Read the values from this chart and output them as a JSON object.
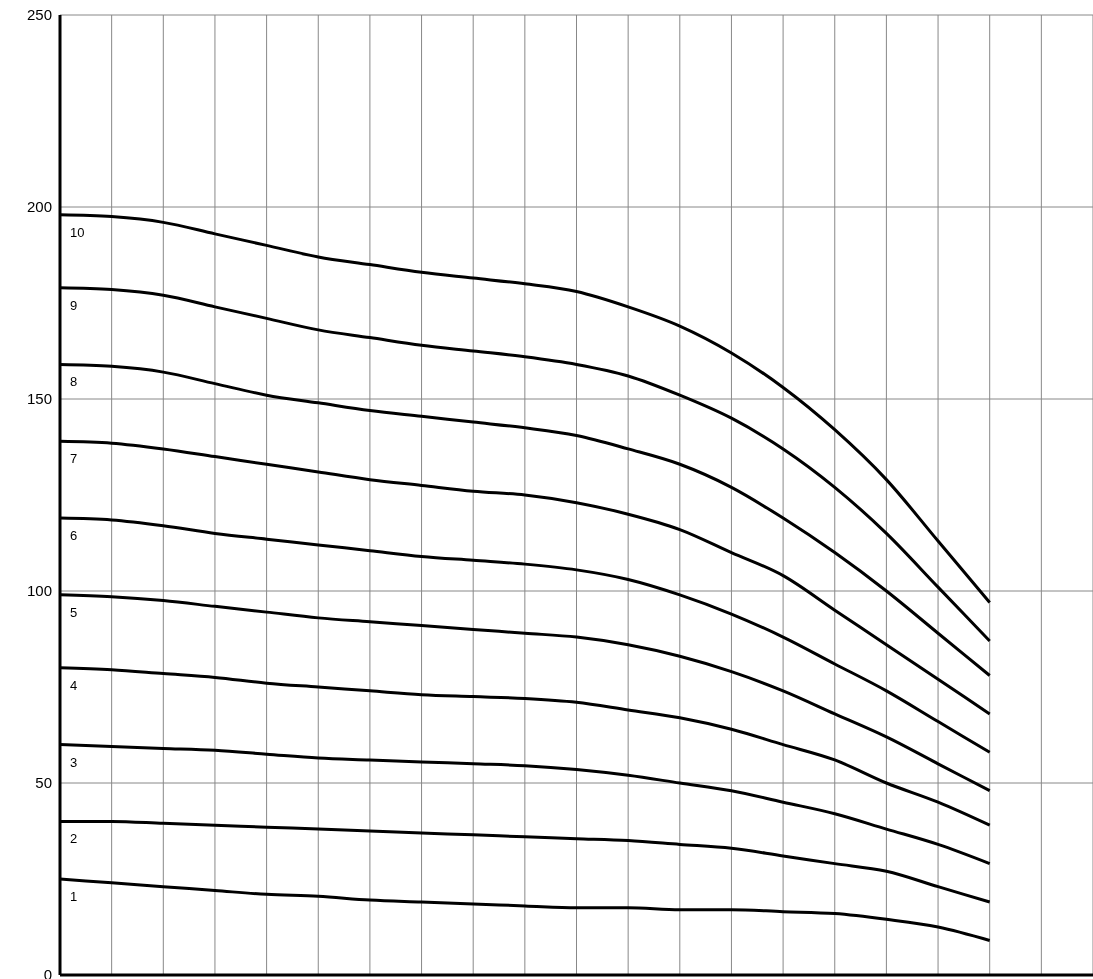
{
  "chart_data": {
    "type": "line",
    "categories": [
      null,
      null,
      null,
      null,
      null,
      null,
      null,
      null,
      null,
      null,
      null,
      null,
      null,
      null,
      null,
      null,
      null,
      null,
      null,
      null,
      null
    ],
    "series": [
      {
        "name": "1",
        "color": "#000000",
        "values": [
          25,
          24,
          23,
          22,
          21,
          20.5,
          19.5,
          19,
          18.5,
          18,
          17.5,
          17.5,
          17,
          17,
          16.5,
          16,
          14.5,
          12.5,
          9,
          null,
          null
        ]
      },
      {
        "name": "2",
        "color": "#000000",
        "values": [
          40,
          40,
          39.5,
          39,
          38.5,
          38,
          37.5,
          37,
          36.5,
          36,
          35.5,
          35,
          34,
          33,
          31,
          29,
          27,
          23,
          19,
          null,
          null
        ]
      },
      {
        "name": "3",
        "color": "#000000",
        "values": [
          60,
          59.5,
          59,
          58.5,
          57.5,
          56.5,
          56,
          55.5,
          55,
          54.5,
          53.5,
          52,
          50,
          48,
          45,
          42,
          38,
          34,
          29,
          null,
          null
        ]
      },
      {
        "name": "4",
        "color": "#000000",
        "values": [
          80,
          79.5,
          78.5,
          77.5,
          76,
          75,
          74,
          73,
          72.5,
          72,
          71,
          69,
          67,
          64,
          60,
          56,
          50,
          45,
          39,
          null,
          null
        ]
      },
      {
        "name": "5",
        "color": "#000000",
        "values": [
          99,
          98.5,
          97.5,
          96,
          94.5,
          93,
          92,
          91,
          90,
          89,
          88,
          86,
          83,
          79,
          74,
          68,
          62,
          55,
          48,
          null,
          null
        ]
      },
      {
        "name": "6",
        "color": "#000000",
        "values": [
          119,
          118.5,
          117,
          115,
          113.5,
          112,
          110.5,
          109,
          108,
          107,
          105.5,
          103,
          99,
          94,
          88,
          81,
          74,
          66,
          58,
          null,
          null
        ]
      },
      {
        "name": "7",
        "color": "#000000",
        "values": [
          139,
          138.5,
          137,
          135,
          133,
          131,
          129,
          127.5,
          126,
          125,
          123,
          120,
          116,
          110,
          104,
          95,
          86,
          77,
          68,
          null,
          null
        ]
      },
      {
        "name": "8",
        "color": "#000000",
        "values": [
          159,
          158.5,
          157,
          154,
          151,
          149,
          147,
          145.5,
          144,
          142.5,
          140.5,
          137,
          133,
          127,
          119,
          110,
          100,
          89,
          78,
          null,
          null
        ]
      },
      {
        "name": "9",
        "color": "#000000",
        "values": [
          179,
          178.5,
          177,
          174,
          171,
          168,
          166,
          164,
          162.5,
          161,
          159,
          156,
          151,
          145,
          137,
          127,
          115,
          101,
          87,
          null,
          null
        ]
      },
      {
        "name": "10",
        "color": "#000000",
        "values": [
          198,
          197.5,
          196,
          193,
          190,
          187,
          185,
          183,
          181.5,
          180,
          178,
          174,
          169,
          162,
          153,
          142,
          129,
          113,
          97,
          null,
          null
        ]
      }
    ],
    "ylim": [
      0,
      250
    ],
    "yticks": [
      0,
      50,
      100,
      150,
      200,
      250
    ],
    "grid": true,
    "marker": "none",
    "line_style": "solid",
    "tick_labels": "y"
  }
}
